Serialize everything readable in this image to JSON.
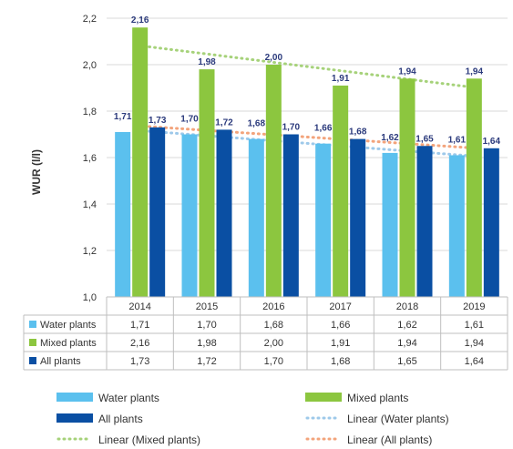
{
  "chart_data": {
    "type": "bar",
    "title": "",
    "xlabel": "",
    "ylabel": "WUR (l/l)",
    "ylim": [
      1.0,
      2.2
    ],
    "yticks": [
      "1,0",
      "1,2",
      "1,4",
      "1,6",
      "1,8",
      "2,0",
      "2,2"
    ],
    "categories": [
      "2014",
      "2015",
      "2016",
      "2017",
      "2018",
      "2019"
    ],
    "series": [
      {
        "name": "Water plants",
        "values": [
          1.71,
          1.7,
          1.68,
          1.66,
          1.62,
          1.61
        ],
        "labels": [
          "1,71",
          "1,70",
          "1,68",
          "1,66",
          "1,62",
          "1,61"
        ],
        "color": "#5bc0ee"
      },
      {
        "name": "Mixed plants",
        "values": [
          2.16,
          1.98,
          2.0,
          1.91,
          1.94,
          1.94
        ],
        "labels": [
          "2,16",
          "1,98",
          "2,00",
          "1,91",
          "1,94",
          "1,94"
        ],
        "color": "#8cc63f"
      },
      {
        "name": "All plants",
        "values": [
          1.73,
          1.72,
          1.7,
          1.68,
          1.65,
          1.64
        ],
        "labels": [
          "1,73",
          "1,72",
          "1,70",
          "1,68",
          "1,65",
          "1,64"
        ],
        "color": "#0a4fa3"
      }
    ],
    "trendlines": [
      {
        "name": "Linear (Water plants)",
        "color": "#9ec9ea",
        "start": 1.715,
        "end": 1.605
      },
      {
        "name": "Linear (Mixed plants)",
        "color": "#a6d27a",
        "start": 2.08,
        "end": 1.9
      },
      {
        "name": "Linear (All plants)",
        "color": "#f3a47c",
        "start": 1.735,
        "end": 1.64
      }
    ],
    "grid": true,
    "legend_position": "bottom",
    "data_table": true
  }
}
